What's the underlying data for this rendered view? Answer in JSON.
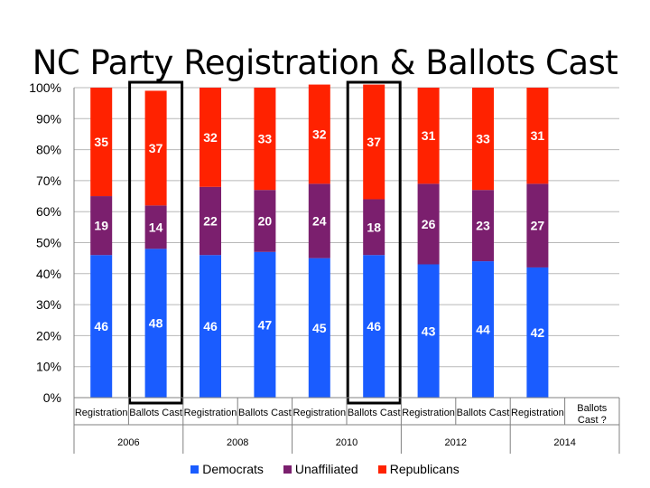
{
  "chart_data": {
    "type": "bar",
    "stacked": true,
    "title": "NC Party Registration & Ballots Cast",
    "y_ticks": [
      "0%",
      "10%",
      "20%",
      "30%",
      "40%",
      "50%",
      "60%",
      "70%",
      "80%",
      "90%",
      "100%"
    ],
    "ylim": [
      0,
      100
    ],
    "categories": [
      "Registration",
      "Ballots Cast",
      "Registration",
      "Ballots Cast",
      "Registration",
      "Ballots Cast",
      "Registration",
      "Ballots Cast",
      "Registration",
      "Ballots\nCast ?"
    ],
    "groups": [
      {
        "label": "2006",
        "span": 2
      },
      {
        "label": "2008",
        "span": 2
      },
      {
        "label": "2010",
        "span": 2
      },
      {
        "label": "2012",
        "span": 2
      },
      {
        "label": "2014",
        "span": 2
      }
    ],
    "highlighted_categories": [
      1,
      5
    ],
    "series": [
      {
        "name": "Democrats",
        "color": "#1a5cff",
        "values": [
          46,
          48,
          46,
          47,
          45,
          46,
          43,
          44,
          42,
          null
        ]
      },
      {
        "name": "Unaffiliated",
        "color": "#7b1f6e",
        "values": [
          19,
          14,
          22,
          20,
          24,
          18,
          26,
          23,
          27,
          null
        ]
      },
      {
        "name": "Republicans",
        "color": "#ff2200",
        "values": [
          35,
          37,
          32,
          33,
          32,
          37,
          31,
          33,
          31,
          null
        ]
      }
    ],
    "legend_position": "bottom"
  }
}
